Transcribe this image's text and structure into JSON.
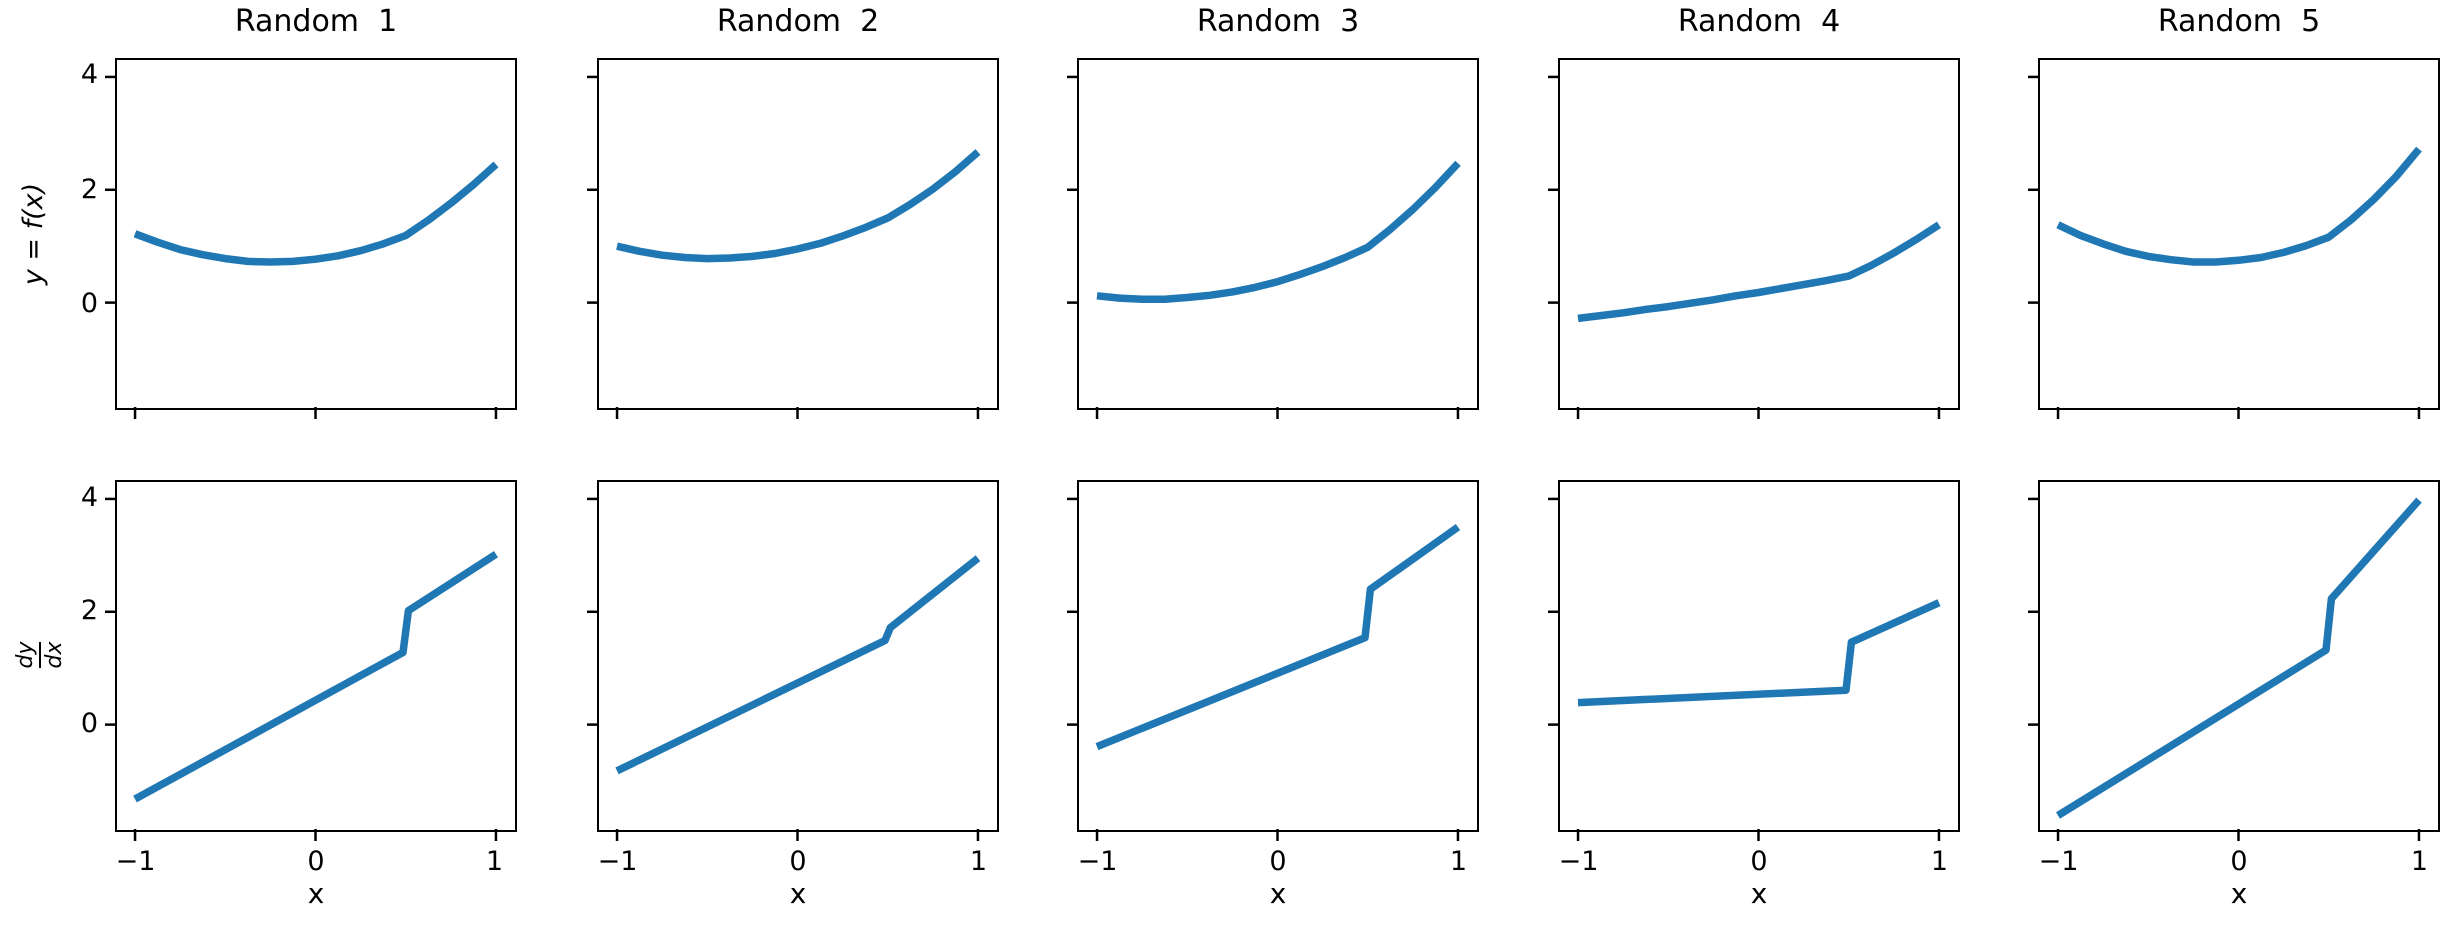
{
  "figure": {
    "background": "#ffffff",
    "line_color": "#1f77b4",
    "row1_ylabel": "y = f(x)",
    "row2_ylabel_num": "dy",
    "row2_ylabel_den": "dx",
    "xlabel": "x",
    "y_tick_labels": [
      "4",
      "2",
      "0"
    ],
    "x_tick_labels": [
      "−1",
      "0",
      "1"
    ]
  },
  "chart_data": {
    "type": "line",
    "layout": "2 rows x 5 columns, shared x and y axes, no grid, no legend",
    "x_range": [
      -1.1,
      1.1
    ],
    "y_range": [
      -1.85,
      4.3
    ],
    "x_ticks": [
      -1,
      0,
      1
    ],
    "y_ticks": [
      0,
      2,
      4
    ],
    "f_x": [
      -1,
      -0.875,
      -0.75,
      -0.625,
      -0.5,
      -0.375,
      -0.25,
      -0.125,
      0,
      0.125,
      0.25,
      0.375,
      0.5,
      0.625,
      0.75,
      0.875,
      1
    ],
    "panels": [
      {
        "title": "Random  1",
        "f_y": [
          1.22,
          1.07,
          0.94,
          0.85,
          0.78,
          0.73,
          0.72,
          0.73,
          0.77,
          0.83,
          0.92,
          1.04,
          1.19,
          1.46,
          1.76,
          2.09,
          2.45
        ],
        "df_x": [
          -1,
          0.485,
          0.515,
          1
        ],
        "df_y": [
          -1.32,
          1.28,
          2.02,
          3.02
        ]
      },
      {
        "title": "Random  2",
        "f_y": [
          1.0,
          0.91,
          0.84,
          0.8,
          0.78,
          0.79,
          0.82,
          0.87,
          0.95,
          1.05,
          1.18,
          1.33,
          1.5,
          1.74,
          2.01,
          2.32,
          2.67
        ],
        "df_x": [
          -1,
          0.485,
          0.515,
          1
        ],
        "df_y": [
          -0.82,
          1.49,
          1.72,
          2.95
        ]
      },
      {
        "title": "Random  3",
        "f_y": [
          0.12,
          0.08,
          0.06,
          0.06,
          0.09,
          0.13,
          0.19,
          0.27,
          0.37,
          0.5,
          0.64,
          0.8,
          0.98,
          1.3,
          1.65,
          2.04,
          2.47
        ],
        "df_x": [
          -1,
          0.485,
          0.515,
          1
        ],
        "df_y": [
          -0.39,
          1.54,
          2.4,
          3.5
        ]
      },
      {
        "title": "Random  4",
        "f_y": [
          -0.28,
          -0.23,
          -0.18,
          -0.12,
          -0.07,
          -0.01,
          0.05,
          0.12,
          0.18,
          0.25,
          0.32,
          0.39,
          0.47,
          0.66,
          0.88,
          1.12,
          1.38
        ],
        "df_x": [
          -1,
          0.485,
          0.515,
          1
        ],
        "df_y": [
          0.39,
          0.61,
          1.46,
          2.16
        ]
      },
      {
        "title": "Random  5",
        "f_y": [
          1.38,
          1.19,
          1.04,
          0.91,
          0.82,
          0.76,
          0.72,
          0.72,
          0.75,
          0.8,
          0.89,
          1.01,
          1.16,
          1.47,
          1.83,
          2.24,
          2.72
        ],
        "df_x": [
          -1,
          0.485,
          0.515,
          1
        ],
        "df_y": [
          -1.61,
          1.32,
          2.23,
          3.98
        ]
      }
    ]
  }
}
